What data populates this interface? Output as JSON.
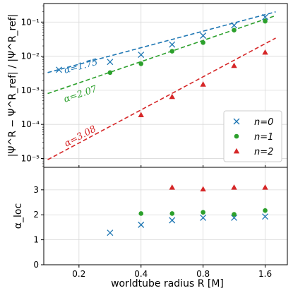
{
  "chart_data": [
    {
      "type": "scatter",
      "panel": "top",
      "xlabel": "worldtube radius R [M]",
      "ylabel": "|Ψ^R − Ψ^R_ref| / |Ψ^R_ref|",
      "xscale": "log",
      "yscale": "log",
      "xlim": [
        0.135,
        2.05
      ],
      "ylim": [
        5.5e-06,
        0.35
      ],
      "yticks": [
        1e-05,
        0.0001,
        0.001,
        0.01,
        0.1
      ],
      "ytick_labels": [
        "10⁻⁵",
        "10⁻⁴",
        "10⁻³",
        "10⁻²",
        "10⁻¹"
      ],
      "grid": true,
      "legend_position": "lower-right",
      "series": [
        {
          "name": "n=0",
          "marker": "x",
          "color": "#1f77b4",
          "x": [
            0.16,
            0.283,
            0.4,
            0.566,
            0.8,
            1.131,
            1.6
          ],
          "y": [
            0.004,
            0.0068,
            0.011,
            0.022,
            0.04,
            0.08,
            0.14
          ],
          "fit": {
            "slope": 1.75,
            "x": [
              0.141,
              1.8
            ],
            "y": [
              0.0033,
              0.2
            ],
            "label": "α=1.75"
          }
        },
        {
          "name": "n=1",
          "marker": "o",
          "color": "#2ca02c",
          "x": [
            0.283,
            0.4,
            0.566,
            0.8,
            1.131,
            1.6
          ],
          "y": [
            0.0033,
            0.006,
            0.014,
            0.025,
            0.058,
            0.106
          ],
          "fit": {
            "slope": 2.07,
            "x": [
              0.141,
              1.8
            ],
            "y": [
              0.0008,
              0.155
            ],
            "label": "α=2.07"
          }
        },
        {
          "name": "n=2",
          "marker": "^",
          "color": "#d62728",
          "x": [
            0.4,
            0.566,
            0.8,
            1.131,
            1.6
          ],
          "y": [
            0.00019,
            0.00065,
            0.0015,
            0.0053,
            0.013
          ],
          "fit": {
            "slope": 3.08,
            "x": [
              0.141,
              1.8
            ],
            "y": [
              9.2e-06,
              0.034
            ],
            "label": "α=3.08"
          }
        }
      ]
    },
    {
      "type": "scatter",
      "panel": "bottom",
      "xlabel": "worldtube radius R [M]",
      "ylabel": "α_loc",
      "xscale": "log",
      "xlim": [
        0.135,
        2.05
      ],
      "ylim": [
        0,
        3.9
      ],
      "xticks": [
        0.2,
        0.4,
        0.8,
        1.6
      ],
      "xtick_labels": [
        "0.2",
        "0.4",
        "0.8",
        "1.6"
      ],
      "yticks": [
        0,
        1,
        2,
        3
      ],
      "ytick_labels": [
        "0",
        "1",
        "2",
        "3"
      ],
      "grid": true,
      "series": [
        {
          "name": "n=0",
          "marker": "x",
          "color": "#1f77b4",
          "x": [
            0.283,
            0.4,
            0.566,
            0.8,
            1.131,
            1.6
          ],
          "y": [
            1.28,
            1.6,
            1.78,
            1.88,
            1.88,
            1.93
          ]
        },
        {
          "name": "n=1",
          "marker": "o",
          "color": "#2ca02c",
          "x": [
            0.4,
            0.566,
            0.8,
            1.131,
            1.6
          ],
          "y": [
            2.05,
            2.05,
            2.1,
            2.02,
            2.17
          ]
        },
        {
          "name": "n=2",
          "marker": "^",
          "color": "#d62728",
          "x": [
            0.566,
            0.8,
            1.131,
            1.6
          ],
          "y": [
            3.1,
            3.03,
            3.1,
            3.1
          ]
        }
      ]
    }
  ],
  "labels": {
    "xlabel": "worldtube radius R [M]",
    "top_ylabel": "|Ψ^R − Ψ^R_ref| / |Ψ^R_ref|",
    "bottom_ylabel": "α_loc",
    "legend": [
      "n=0",
      "n=1",
      "n=2"
    ]
  }
}
